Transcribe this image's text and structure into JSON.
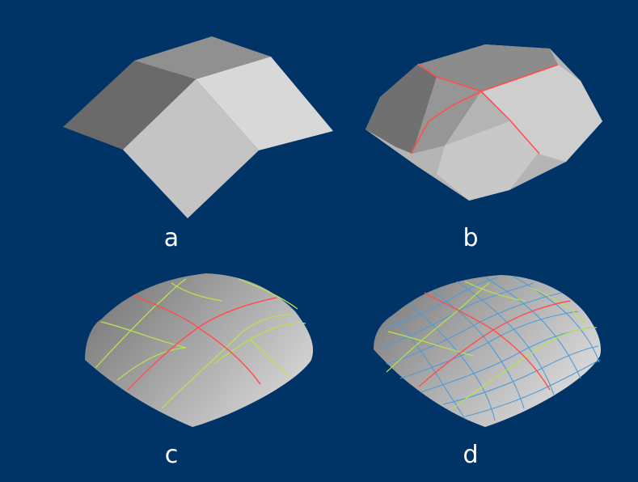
{
  "panels": [
    {
      "id": "a",
      "label": "a"
    },
    {
      "id": "b",
      "label": "b"
    },
    {
      "id": "c",
      "label": "c"
    },
    {
      "id": "d",
      "label": "d"
    }
  ],
  "colors": {
    "background": "#003366",
    "level1_edges": "#ff4d4d",
    "level2_edges": "#b8e34a",
    "level3_edges": "#4f9bd6",
    "label_text": "#ffffff"
  }
}
